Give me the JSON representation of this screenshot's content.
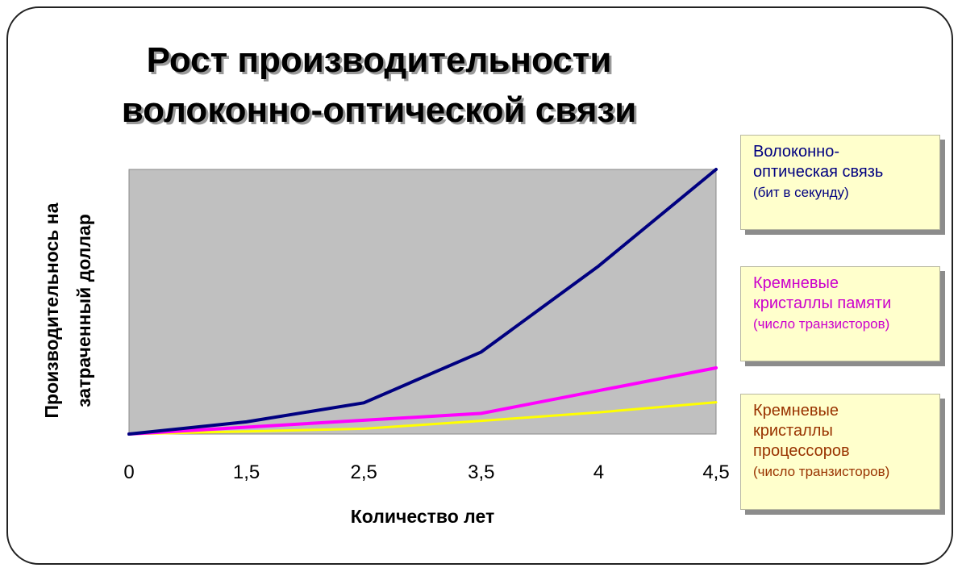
{
  "title_lines": [
    "Рост производительности",
    "волоконно-оптической связи"
  ],
  "colors": {
    "plot_bg": "#c0c0c0",
    "legend_bg": "#ffffcc",
    "fiber": "#000080",
    "memory": "#ff00ff",
    "processor": "#ffff00",
    "legend_text_fiber": "#000080",
    "legend_text_memory": "#cc00cc",
    "legend_text_processor": "#993300"
  },
  "legend": [
    {
      "lines": [
        "Волоконно-",
        "оптическая связь",
        "(бит в секунду)"
      ]
    },
    {
      "lines": [
        "Кремневые",
        "кристаллы памяти",
        "(число транзисторов)"
      ]
    },
    {
      "lines": [
        "Кремневые",
        "кристаллы",
        "процессоров",
        "(число транзисторов)"
      ]
    }
  ],
  "chart_data": {
    "type": "line",
    "title": "Рост производительности волоконно-оптической связи",
    "xlabel": "Количество лет",
    "ylabel": "Производительнось на затраченный доллар",
    "ylabel_lines": [
      "Производительнось на",
      "затраченный доллар"
    ],
    "categories": [
      "0",
      "1,5",
      "2,5",
      "3,5",
      "4",
      "4,5"
    ],
    "ylim": [
      0,
      100
    ],
    "grid": false,
    "legend_position": "right",
    "series": [
      {
        "name": "Волоконно-оптическая связь (бит в секунду)",
        "color": "#000080",
        "width": 4,
        "values": [
          0,
          4.6,
          11.8,
          31,
          63.5,
          100
        ]
      },
      {
        "name": "Кремневые кристаллы памяти (число транзисторов)",
        "color": "#ff00ff",
        "width": 4,
        "values": [
          0,
          2.6,
          5.2,
          7.8,
          16.4,
          25
        ]
      },
      {
        "name": "Кремневые кристаллы процессоров (число транзисторов)",
        "color": "#ffff00",
        "width": 3,
        "values": [
          0,
          1,
          2,
          5,
          8.2,
          12
        ]
      }
    ]
  }
}
